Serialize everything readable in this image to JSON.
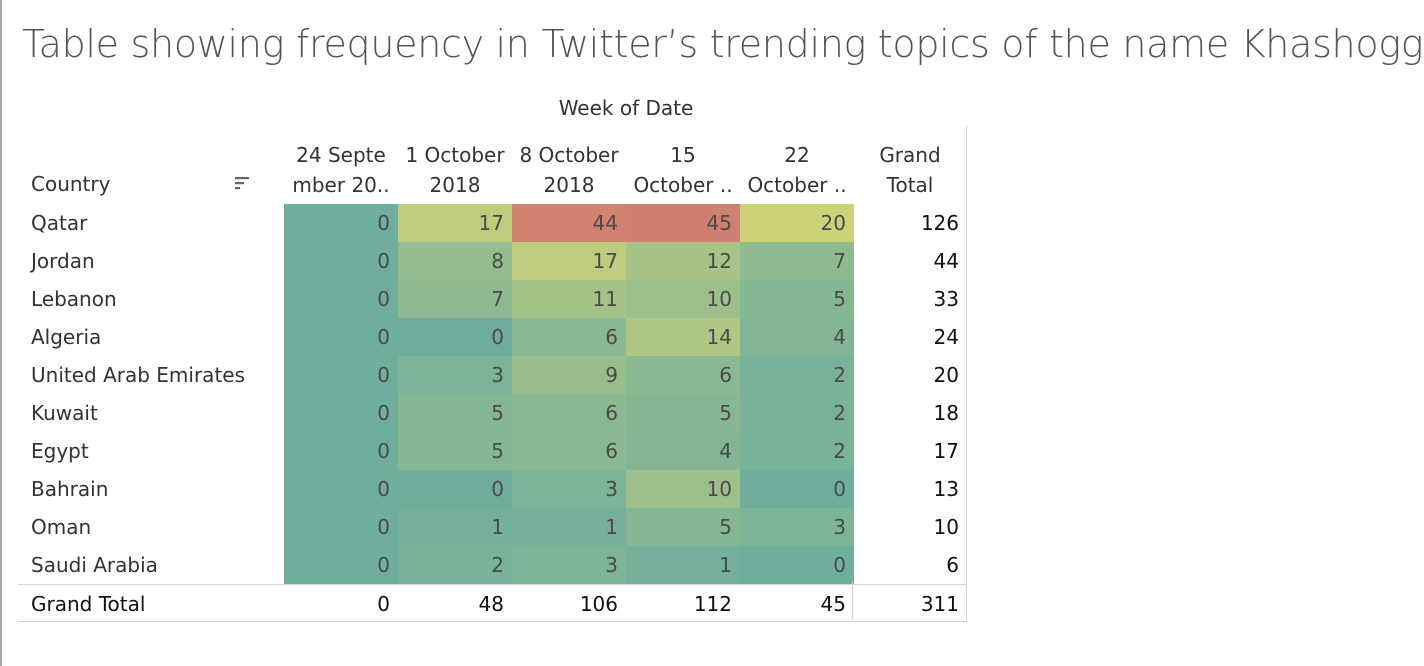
{
  "title": "Table showing frequency in Twitter’s trending topics of the name Khashoggi",
  "chart_data": {
    "type": "heatmap",
    "title": "Table showing frequency in Twitter’s trending topics of the name Khashoggi",
    "column_group_label": "Week of Date",
    "row_header": "Country",
    "columns": [
      {
        "line1": "24 Septe",
        "line2": "mber 20.."
      },
      {
        "line1": "1 October",
        "line2": "2018"
      },
      {
        "line1": "8 October",
        "line2": "2018"
      },
      {
        "line1": "15",
        "line2": "October .."
      },
      {
        "line1": "22",
        "line2": "October .."
      }
    ],
    "grand_total_header": {
      "line1": "Grand",
      "line2": "Total"
    },
    "rows": [
      {
        "country": "Qatar",
        "values": [
          0,
          17,
          44,
          45,
          20
        ],
        "total": 126
      },
      {
        "country": "Jordan",
        "values": [
          0,
          8,
          17,
          12,
          7
        ],
        "total": 44
      },
      {
        "country": "Lebanon",
        "values": [
          0,
          7,
          11,
          10,
          5
        ],
        "total": 33
      },
      {
        "country": "Algeria",
        "values": [
          0,
          0,
          6,
          14,
          4
        ],
        "total": 24
      },
      {
        "country": "United Arab Emirates",
        "values": [
          0,
          3,
          9,
          6,
          2
        ],
        "total": 20
      },
      {
        "country": "Kuwait",
        "values": [
          0,
          5,
          6,
          5,
          2
        ],
        "total": 18
      },
      {
        "country": "Egypt",
        "values": [
          0,
          5,
          6,
          4,
          2
        ],
        "total": 17
      },
      {
        "country": "Bahrain",
        "values": [
          0,
          0,
          3,
          10,
          0
        ],
        "total": 13
      },
      {
        "country": "Oman",
        "values": [
          0,
          1,
          1,
          5,
          3
        ],
        "total": 10
      },
      {
        "country": "Saudi Arabia",
        "values": [
          0,
          2,
          3,
          1,
          0
        ],
        "total": 6
      }
    ],
    "grand_total": {
      "label": "Grand Total",
      "values": [
        0,
        48,
        106,
        112,
        45
      ],
      "total": 311
    },
    "color_scale": {
      "low": "#6fae9c",
      "mid": "#cdd278",
      "high": "#d08070"
    }
  },
  "icons": {
    "sort": "sort-descending-icon"
  }
}
